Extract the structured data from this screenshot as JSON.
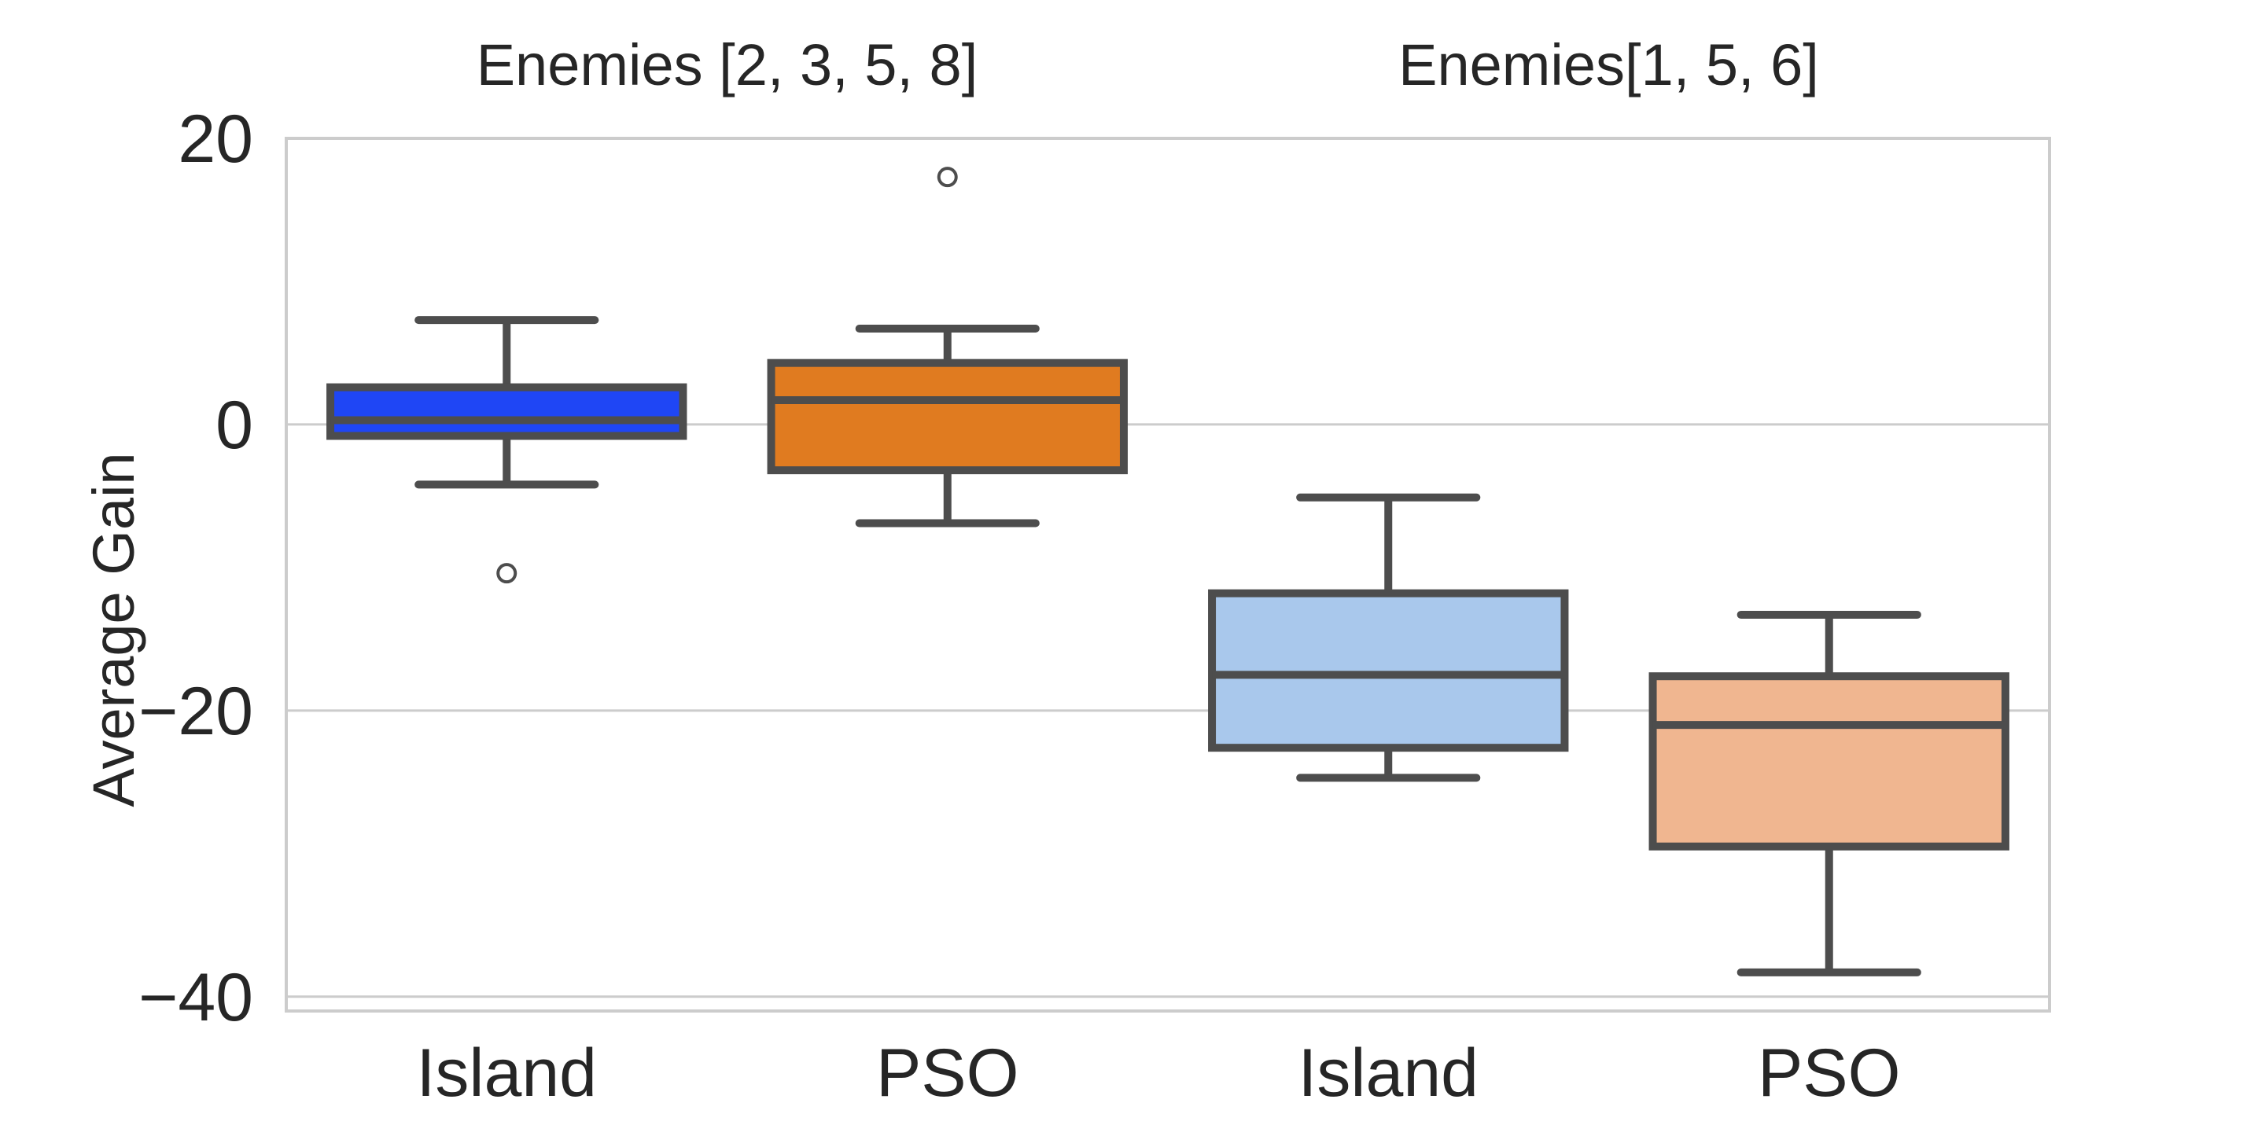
{
  "chart_data": {
    "type": "box",
    "ylabel": "Average Gain",
    "xlabel": "",
    "ylim": [
      -41,
      20
    ],
    "yticks": [
      20,
      0,
      -20,
      -40
    ],
    "grid": "horizontal",
    "groups": [
      {
        "title": "Enemies [2, 3, 5, 8]"
      },
      {
        "title": "Enemies[1, 5, 6]"
      }
    ],
    "boxes": [
      {
        "group": 0,
        "category": "Island",
        "color": "#1f46f5",
        "whisker_low": -4.2,
        "q1": -0.8,
        "median": 0.3,
        "q3": 2.6,
        "whisker_high": 7.3,
        "outliers": [
          -10.4
        ]
      },
      {
        "group": 0,
        "category": "PSO",
        "color": "#e07b20",
        "whisker_low": -6.9,
        "q1": -3.2,
        "median": 1.7,
        "q3": 4.3,
        "whisker_high": 6.7,
        "outliers": [
          17.3
        ]
      },
      {
        "group": 1,
        "category": "Island",
        "color": "#a9c8ec",
        "whisker_low": -24.7,
        "q1": -22.6,
        "median": -17.5,
        "q3": -11.8,
        "whisker_high": -5.1,
        "outliers": []
      },
      {
        "group": 1,
        "category": "PSO",
        "color": "#f0b690",
        "whisker_low": -38.3,
        "q1": -29.5,
        "median": -21.0,
        "q3": -17.6,
        "whisker_high": -13.3,
        "outliers": []
      }
    ],
    "style": {
      "box_edge_color": "#4d4d4d",
      "grid_color": "#cccccc",
      "frame_color": "#cccccc"
    }
  }
}
